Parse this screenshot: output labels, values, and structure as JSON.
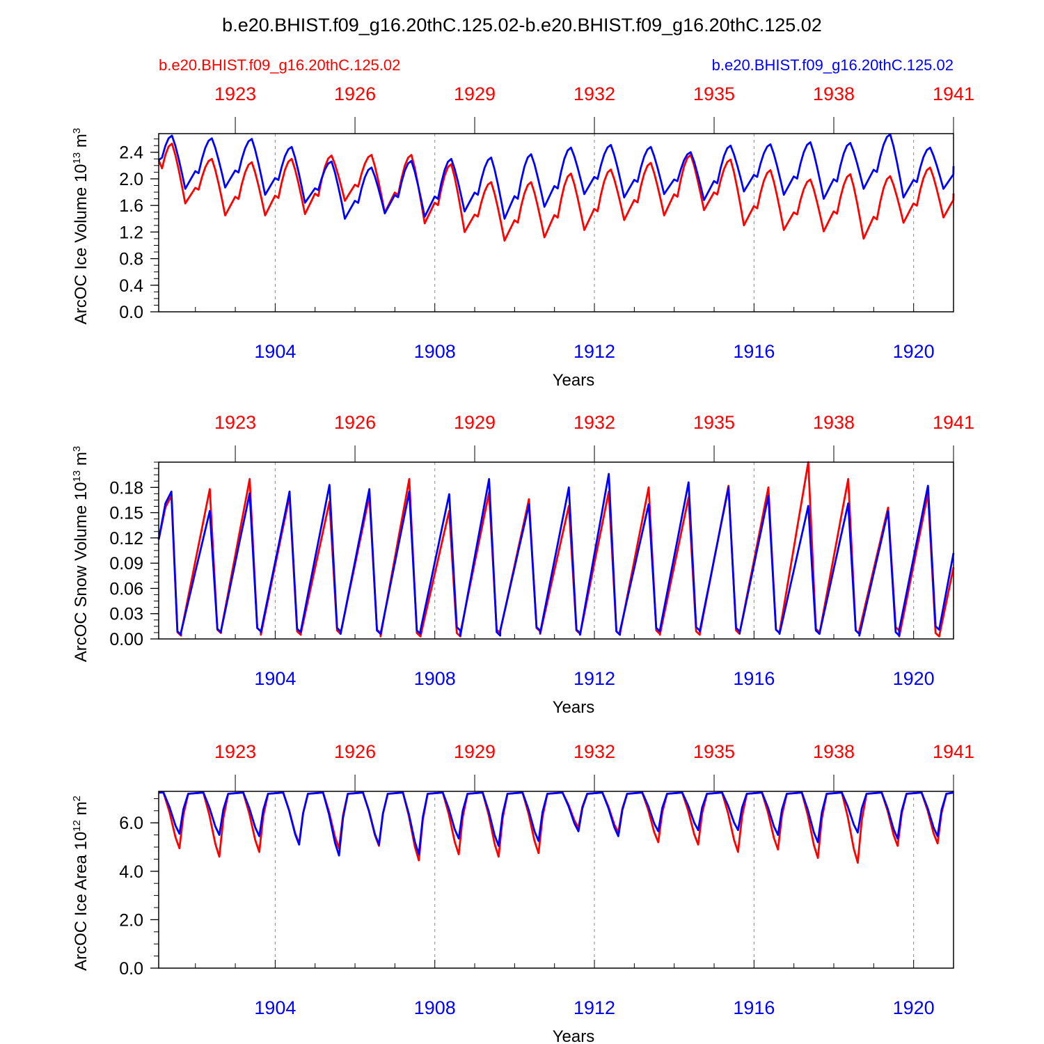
{
  "title": "b.e20.BHIST.f09_g16.20thC.125.02-b.e20.BHIST.f09_g16.20thC.125.02",
  "legend": {
    "left_label": "b.e20.BHIST.f09_g16.20thC.125.02",
    "right_label": "b.e20.BHIST.f09_g16.20thC.125.02",
    "left_color": "#ff0000",
    "right_color": "#0000ff"
  },
  "colors": {
    "red": "#ff0000",
    "blue": "#0000ff",
    "axis": "#000000",
    "grid": "#888888"
  },
  "chart_data": [
    {
      "type": "line",
      "panel": "ice-volume",
      "title": "b.e20.BHIST.f09_g16.20thC.125.02-b.e20.BHIST.f09_g16.20thC.125.02",
      "xlabel": "Years",
      "ylabel_main": "ArcOC Ice Volume 10",
      "ylabel_sup": "13",
      "ylabel_unit": " m",
      "ylabel_unit_sup": "3",
      "xlim": [
        1901.08,
        1921.0
      ],
      "ylim": [
        0.0,
        2.68
      ],
      "yticks": [
        "0.0",
        "0.4",
        "0.8",
        "1.2",
        "1.6",
        "2.0",
        "2.4"
      ],
      "ytick_values": [
        0.0,
        0.4,
        0.8,
        1.2,
        1.6,
        2.0,
        2.4
      ],
      "bottom_ticks": [
        "1904",
        "1908",
        "1912",
        "1916",
        "1920"
      ],
      "bottom_tick_values": [
        1904,
        1908,
        1912,
        1916,
        1920
      ],
      "top_ticks": [
        "1923",
        "1926",
        "1929",
        "1932",
        "1935",
        "1938",
        "1941"
      ],
      "top_tick_values": [
        1923,
        1926,
        1929,
        1932,
        1935,
        1938,
        1941
      ],
      "series": [
        {
          "name": "b.e20.BHIST.f09_g16.20thC.125.02 (red)",
          "color": "#ff0000",
          "peak_year": [
            1901.4,
            1902.35,
            1903.45,
            1904.45,
            1905.45,
            1906.45,
            1907.4,
            1908.4,
            1909.4,
            1910.4,
            1911.4,
            1912.45,
            1913.4,
            1914.45,
            1915.45,
            1916.45,
            1917.45,
            1918.45,
            1919.45,
            1920.55
          ],
          "peak": [
            2.53,
            2.3,
            2.25,
            2.3,
            2.35,
            2.36,
            2.36,
            2.22,
            1.95,
            1.95,
            2.08,
            2.14,
            2.24,
            2.36,
            2.29,
            2.13,
            1.99,
            2.07,
            2.04,
            2.17
          ],
          "trough": [
            1.63,
            1.45,
            1.45,
            1.47,
            1.67,
            1.49,
            1.33,
            1.2,
            1.07,
            1.12,
            1.23,
            1.38,
            1.45,
            1.53,
            1.3,
            1.23,
            1.21,
            1.1,
            1.34,
            1.42
          ],
          "end_value": 1.78
        },
        {
          "name": "b.e20.BHIST.f09_g16.20thC.125.02 (blue)",
          "color": "#0000ff",
          "peak_year": [
            1901.4,
            1902.4,
            1903.45,
            1904.4,
            1905.3,
            1906.4,
            1907.35,
            1908.45,
            1909.45,
            1910.35,
            1911.4,
            1912.45,
            1913.4,
            1914.35,
            1915.4,
            1916.45,
            1917.45,
            1918.45,
            1919.45,
            1920.45
          ],
          "peak": [
            2.65,
            2.61,
            2.6,
            2.48,
            2.26,
            2.17,
            2.27,
            2.3,
            2.32,
            2.37,
            2.47,
            2.51,
            2.48,
            2.4,
            2.5,
            2.52,
            2.55,
            2.54,
            2.67,
            2.47
          ],
          "trough": [
            1.85,
            1.87,
            1.76,
            1.64,
            1.4,
            1.48,
            1.43,
            1.51,
            1.4,
            1.58,
            1.77,
            1.72,
            1.77,
            1.68,
            1.81,
            1.76,
            1.7,
            1.85,
            1.72,
            1.85
          ],
          "end_value": 2.19
        }
      ]
    },
    {
      "type": "line",
      "panel": "snow-volume",
      "xlabel": "Years",
      "ylabel_main": "ArcOC Snow Volume 10",
      "ylabel_sup": "13",
      "ylabel_unit": " m",
      "ylabel_unit_sup": "3",
      "xlim": [
        1901.08,
        1921.0
      ],
      "ylim": [
        0.0,
        0.21
      ],
      "yticks": [
        "0.00",
        "0.03",
        "0.06",
        "0.09",
        "0.12",
        "0.15",
        "0.18"
      ],
      "ytick_values": [
        0.0,
        0.03,
        0.06,
        0.09,
        0.12,
        0.15,
        0.18
      ],
      "bottom_ticks": [
        "1904",
        "1908",
        "1912",
        "1916",
        "1920"
      ],
      "bottom_tick_values": [
        1904,
        1908,
        1912,
        1916,
        1920
      ],
      "top_ticks": [
        "1923",
        "1926",
        "1929",
        "1932",
        "1935",
        "1938",
        "1941"
      ],
      "top_tick_values": [
        1923,
        1926,
        1929,
        1932,
        1935,
        1938,
        1941
      ],
      "series": [
        {
          "name": "b.e20.BHIST.f09_g16.20thC.125.02 (red)",
          "color": "#ff0000",
          "start_value": 0.118,
          "peak": [
            0.17,
            0.178,
            0.19,
            0.17,
            0.163,
            0.17,
            0.19,
            0.152,
            0.174,
            0.166,
            0.158,
            0.175,
            0.18,
            0.168,
            0.182,
            0.18,
            0.21,
            0.19,
            0.156,
            0.173
          ],
          "trough": [
            0.004,
            0.007,
            0.009,
            0.005,
            0.006,
            0.007,
            0.003,
            0.003,
            0.007,
            0.009,
            0.006,
            0.005,
            0.006,
            0.005,
            0.006,
            0.007,
            0.008,
            0.006,
            0.01,
            0.003
          ],
          "end_value": 0.085
        },
        {
          "name": "b.e20.BHIST.f09_g16.20thC.125.02 (blue)",
          "color": "#0000ff",
          "start_value": 0.118,
          "peak": [
            0.175,
            0.152,
            0.173,
            0.175,
            0.183,
            0.178,
            0.175,
            0.172,
            0.19,
            0.16,
            0.18,
            0.196,
            0.16,
            0.186,
            0.18,
            0.17,
            0.158,
            0.161,
            0.152,
            0.182
          ],
          "trough": [
            0.005,
            0.008,
            0.009,
            0.008,
            0.009,
            0.006,
            0.006,
            0.01,
            0.004,
            0.01,
            0.007,
            0.005,
            0.009,
            0.01,
            0.009,
            0.007,
            0.006,
            0.006,
            0.004,
            0.011
          ],
          "end_value": 0.102
        }
      ]
    },
    {
      "type": "line",
      "panel": "ice-area",
      "xlabel": "Years",
      "ylabel_main": "ArcOC Ice Area 10",
      "ylabel_sup": "12",
      "ylabel_unit": " m",
      "ylabel_unit_sup": "2",
      "xlim": [
        1901.08,
        1921.0
      ],
      "ylim": [
        0.0,
        7.3
      ],
      "yticks": [
        "0.0",
        "2.0",
        "4.0",
        "6.0"
      ],
      "ytick_values": [
        0.0,
        2.0,
        4.0,
        6.0
      ],
      "bottom_ticks": [
        "1904",
        "1908",
        "1912",
        "1916",
        "1920"
      ],
      "bottom_tick_values": [
        1904,
        1908,
        1912,
        1916,
        1920
      ],
      "top_ticks": [
        "1923",
        "1926",
        "1929",
        "1932",
        "1935",
        "1938",
        "1941"
      ],
      "top_tick_values": [
        1923,
        1926,
        1929,
        1932,
        1935,
        1938,
        1941
      ],
      "series": [
        {
          "name": "b.e20.BHIST.f09_g16.20thC.125.02 (red)",
          "color": "#ff0000",
          "plateau": 7.25,
          "trough": [
            4.95,
            4.6,
            4.8,
            5.15,
            4.95,
            5.05,
            4.45,
            4.7,
            4.6,
            4.75,
            5.8,
            5.6,
            5.2,
            5.1,
            4.8,
            4.9,
            4.55,
            4.35,
            5.05,
            5.15
          ]
        },
        {
          "name": "b.e20.BHIST.f09_g16.20thC.125.02 (blue)",
          "color": "#0000ff",
          "plateau": 7.25,
          "trough": [
            5.55,
            5.5,
            5.45,
            5.1,
            4.65,
            5.1,
            4.7,
            5.35,
            5.05,
            5.25,
            5.65,
            5.45,
            5.65,
            5.7,
            5.7,
            5.5,
            5.2,
            5.6,
            5.35,
            5.45
          ]
        }
      ]
    }
  ]
}
